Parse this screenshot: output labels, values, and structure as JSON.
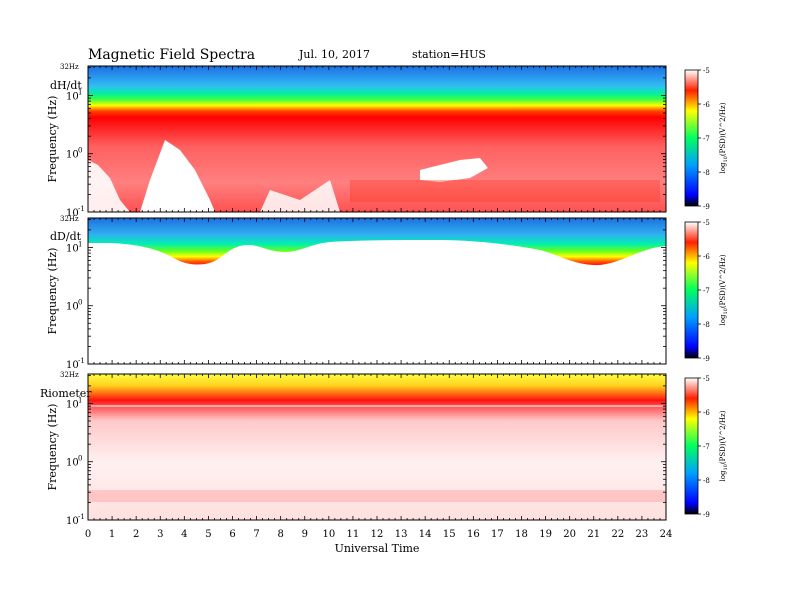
{
  "header": {
    "title": "Magnetic  Field  Spectra",
    "date": "Jul.  10, 2017",
    "station": "station=HUS"
  },
  "chart_data": {
    "type": "heatmap",
    "x_axis": {
      "label": "Universal Time",
      "range": [
        0,
        24
      ],
      "ticks": [
        "0",
        "1",
        "2",
        "3",
        "4",
        "5",
        "6",
        "7",
        "8",
        "9",
        "10",
        "11",
        "12",
        "13",
        "14",
        "15",
        "16",
        "17",
        "18",
        "19",
        "20",
        "21",
        "22",
        "23",
        "24"
      ]
    },
    "y_axis": {
      "label": "Frequency  (Hz)",
      "scale": "log",
      "range_hz": [
        0.1,
        32
      ],
      "top_label": "32Hz",
      "ticks": [
        {
          "value": 0.1,
          "base": "10",
          "exp": "-1"
        },
        {
          "value": 1,
          "base": "10",
          "exp": "0"
        },
        {
          "value": 10,
          "base": "10",
          "exp": "1"
        }
      ]
    },
    "colorbar": {
      "label": "log10(PSD)(V^2/Hz)",
      "label_parts": {
        "pre": "log",
        "sub": "10",
        "post": "(PSD)(V^2/Hz)"
      },
      "range": [
        -9,
        -5
      ],
      "ticks": [
        "-5",
        "-6",
        "-7",
        "-8",
        "-9"
      ],
      "colormap": [
        "#000000",
        "#0000ff",
        "#00a0ff",
        "#00ff80",
        "#ffff00",
        "#ff0000",
        "#ffffff"
      ]
    },
    "panels": [
      {
        "name": "dH/dt",
        "description_level": "high-power band ~3-7 Hz"
      },
      {
        "name": "dD/dt",
        "description_level": "band above ~8 Hz, dipping near 5 UT"
      },
      {
        "name": "Riometer",
        "description_level": "strong band ~10 Hz"
      }
    ]
  }
}
